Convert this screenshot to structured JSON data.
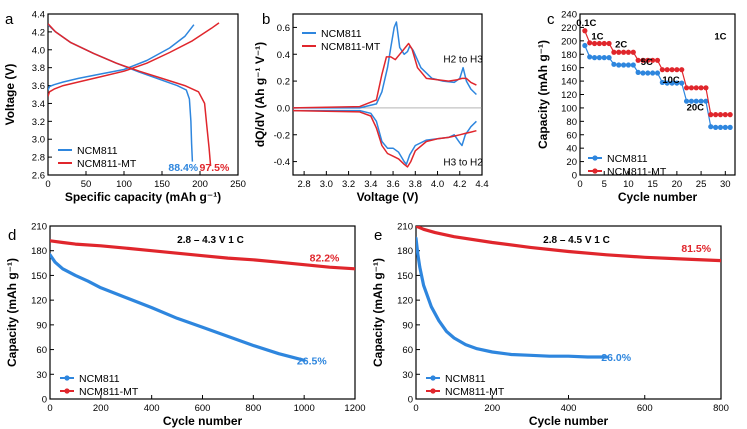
{
  "colors": {
    "ncm811": "#2e86de",
    "ncm811_mt": "#e0262c"
  },
  "chart_data": [
    {
      "id": "a",
      "panel_letter": "a",
      "type": "line",
      "xlabel": "Specific capacity (mAh g⁻¹)",
      "ylabel": "Voltage (V)",
      "xlim": [
        0,
        250
      ],
      "ylim": [
        2.6,
        4.4
      ],
      "xticks": [
        "0",
        "50",
        "100",
        "150",
        "200",
        "250"
      ],
      "yticks": [
        "2.6",
        "2.8",
        "3.0",
        "3.2",
        "3.4",
        "3.6",
        "3.8",
        "4.0",
        "4.2",
        "4.4"
      ],
      "legend": [
        "NCM811",
        "NCM811-MT"
      ],
      "series": [
        {
          "name": "NCM811",
          "color_key": "ncm811",
          "segments": [
            {
              "label": "charge",
              "x": [
                0,
                2,
                8,
                20,
                40,
                70,
                100,
                130,
                160,
                180,
                192
              ],
              "y": [
                3.55,
                3.59,
                3.61,
                3.64,
                3.68,
                3.73,
                3.78,
                3.88,
                4.02,
                4.15,
                4.28
              ]
            },
            {
              "label": "discharge",
              "x": [
                0,
                10,
                30,
                60,
                90,
                120,
                150,
                170,
                182,
                186,
                188,
                189,
                190
              ],
              "y": [
                4.28,
                4.2,
                4.08,
                3.96,
                3.85,
                3.75,
                3.66,
                3.6,
                3.55,
                3.45,
                3.2,
                2.95,
                2.75
              ]
            }
          ]
        },
        {
          "name": "NCM811-MT",
          "color_key": "ncm811_mt",
          "segments": [
            {
              "label": "charge",
              "x": [
                0,
                2,
                8,
                20,
                40,
                70,
                100,
                130,
                160,
                190,
                215,
                225
              ],
              "y": [
                3.48,
                3.53,
                3.56,
                3.6,
                3.64,
                3.7,
                3.76,
                3.85,
                3.97,
                4.1,
                4.24,
                4.3
              ]
            },
            {
              "label": "discharge",
              "x": [
                0,
                10,
                30,
                60,
                90,
                120,
                150,
                180,
                198,
                206,
                209,
                212,
                214
              ],
              "y": [
                4.29,
                4.2,
                4.08,
                3.96,
                3.85,
                3.76,
                3.68,
                3.6,
                3.53,
                3.4,
                3.15,
                2.9,
                2.7
              ]
            }
          ]
        }
      ],
      "annotations": [
        {
          "text": "88.4%",
          "x": 178,
          "y": 2.69,
          "color_key": "ncm811"
        },
        {
          "text": "97.5%",
          "x": 219,
          "y": 2.69,
          "color_key": "ncm811_mt"
        }
      ]
    },
    {
      "id": "b",
      "panel_letter": "b",
      "type": "line",
      "xlabel": "Voltage (V)",
      "ylabel": "dQ/dV (Ah g⁻¹ V⁻¹)",
      "xlim": [
        2.7,
        4.4
      ],
      "ylim": [
        -0.5,
        0.7
      ],
      "xticks": [
        "2.8",
        "3.0",
        "3.2",
        "3.4",
        "3.6",
        "3.8",
        "4.0",
        "4.2",
        "4.4"
      ],
      "yticks": [
        "-0.4",
        "-0.2",
        "0.0",
        "0.2",
        "0.4",
        "0.6"
      ],
      "legend": [
        "NCM811",
        "NCM811-MT"
      ],
      "series": [
        {
          "name": "NCM811",
          "color_key": "ncm811",
          "segments": [
            {
              "label": "charge",
              "x": [
                2.7,
                3.3,
                3.45,
                3.5,
                3.55,
                3.58,
                3.61,
                3.63,
                3.66,
                3.7,
                3.73,
                3.75,
                3.78,
                3.85,
                3.95,
                4.05,
                4.15,
                4.2,
                4.23,
                4.26,
                4.3,
                4.35
              ],
              "y": [
                0.0,
                0.0,
                0.03,
                0.12,
                0.3,
                0.45,
                0.6,
                0.64,
                0.45,
                0.4,
                0.42,
                0.46,
                0.43,
                0.3,
                0.22,
                0.2,
                0.19,
                0.22,
                0.3,
                0.2,
                0.14,
                0.1
              ]
            },
            {
              "label": "discharge",
              "x": [
                2.7,
                3.3,
                3.4,
                3.45,
                3.5,
                3.55,
                3.6,
                3.65,
                3.7,
                3.72,
                3.75,
                3.8,
                3.9,
                4.0,
                4.1,
                4.15,
                4.2,
                4.22,
                4.25,
                4.3,
                4.35
              ],
              "y": [
                -0.02,
                -0.02,
                -0.04,
                -0.1,
                -0.25,
                -0.3,
                -0.3,
                -0.33,
                -0.4,
                -0.42,
                -0.35,
                -0.28,
                -0.24,
                -0.23,
                -0.22,
                -0.2,
                -0.26,
                -0.28,
                -0.2,
                -0.14,
                -0.1
              ]
            }
          ]
        },
        {
          "name": "NCM811-MT",
          "color_key": "ncm811_mt",
          "segments": [
            {
              "label": "charge",
              "x": [
                2.7,
                3.3,
                3.45,
                3.5,
                3.54,
                3.58,
                3.62,
                3.66,
                3.7,
                3.74,
                3.77,
                3.82,
                3.9,
                4.0,
                4.1,
                4.18,
                4.22,
                4.26,
                4.3,
                4.35
              ],
              "y": [
                0.0,
                0.01,
                0.06,
                0.25,
                0.38,
                0.38,
                0.36,
                0.4,
                0.44,
                0.48,
                0.44,
                0.3,
                0.22,
                0.21,
                0.2,
                0.21,
                0.22,
                0.22,
                0.19,
                0.17
              ]
            },
            {
              "label": "discharge",
              "x": [
                2.7,
                3.3,
                3.4,
                3.45,
                3.5,
                3.55,
                3.6,
                3.65,
                3.7,
                3.73,
                3.76,
                3.8,
                3.9,
                4.0,
                4.1,
                4.15,
                4.2,
                4.25,
                4.3,
                4.35
              ],
              "y": [
                -0.02,
                -0.03,
                -0.06,
                -0.15,
                -0.28,
                -0.34,
                -0.36,
                -0.38,
                -0.42,
                -0.44,
                -0.4,
                -0.32,
                -0.25,
                -0.23,
                -0.22,
                -0.21,
                -0.2,
                -0.19,
                -0.18,
                -0.17
              ]
            }
          ]
        }
      ],
      "annotations": [
        {
          "text": "H2 to H3",
          "x": 4.23,
          "y": 0.37
        },
        {
          "text": "H3 to H2",
          "x": 4.23,
          "y": -0.4
        }
      ]
    },
    {
      "id": "c",
      "panel_letter": "c",
      "type": "scatter",
      "xlabel": "Cycle number",
      "ylabel": "Capacity (mAh g⁻¹)",
      "xlim": [
        0,
        32
      ],
      "ylim": [
        0,
        240
      ],
      "xticks": [
        "0",
        "5",
        "10",
        "15",
        "20",
        "25",
        "30"
      ],
      "yticks": [
        "0",
        "20",
        "40",
        "60",
        "80",
        "100",
        "120",
        "140",
        "160",
        "180",
        "200",
        "220",
        "240"
      ],
      "legend": [
        "NCM811",
        "NCM811-MT"
      ],
      "x": [
        1,
        2,
        3,
        4,
        5,
        6,
        7,
        8,
        9,
        10,
        11,
        12,
        13,
        14,
        15,
        16,
        17,
        18,
        19,
        20,
        21,
        22,
        23,
        24,
        25,
        26,
        27,
        28,
        29,
        30,
        31
      ],
      "series": [
        {
          "name": "NCM811",
          "color_key": "ncm811",
          "values": [
            193,
            176,
            175,
            175,
            175,
            175,
            165,
            164,
            164,
            164,
            164,
            153,
            152,
            152,
            152,
            152,
            138,
            137,
            137,
            137,
            137,
            110,
            110,
            110,
            110,
            110,
            72,
            71,
            71,
            71,
            71
          ]
        },
        {
          "name": "NCM811-MT",
          "color_key": "ncm811_mt",
          "values": [
            215,
            197,
            196,
            196,
            196,
            196,
            183,
            183,
            183,
            183,
            183,
            171,
            171,
            171,
            171,
            171,
            157,
            157,
            157,
            157,
            157,
            130,
            130,
            130,
            130,
            130,
            90,
            90,
            90,
            90,
            90
          ]
        }
      ],
      "rate_labels": [
        {
          "text": "0.1C",
          "x": 1.3,
          "y": 222
        },
        {
          "text": "1C",
          "x": 3.6,
          "y": 202
        },
        {
          "text": "2C",
          "x": 8.5,
          "y": 190
        },
        {
          "text": "5C",
          "x": 13.8,
          "y": 164
        },
        {
          "text": "10C",
          "x": 18.8,
          "y": 137
        },
        {
          "text": "20C",
          "x": 23.8,
          "y": 96
        },
        {
          "text": "1C",
          "x": 29.0,
          "y": 202
        }
      ]
    },
    {
      "id": "d",
      "panel_letter": "d",
      "type": "line",
      "condition": "2.8 – 4.3 V  1 C",
      "xlabel": "Cycle number",
      "ylabel": "Capacity (mAh g⁻¹)",
      "xlim": [
        0,
        1200
      ],
      "ylim": [
        0,
        210
      ],
      "xticks": [
        "0",
        "200",
        "400",
        "600",
        "800",
        "1000",
        "1200"
      ],
      "yticks": [
        "0",
        "30",
        "60",
        "90",
        "120",
        "150",
        "180",
        "210"
      ],
      "legend": [
        "NCM811",
        "NCM811-MT"
      ],
      "series": [
        {
          "name": "NCM811",
          "color_key": "ncm811",
          "x": [
            0,
            20,
            50,
            100,
            150,
            200,
            300,
            400,
            500,
            600,
            700,
            800,
            900,
            1000
          ],
          "y": [
            175,
            166,
            158,
            150,
            143,
            135,
            123,
            111,
            98,
            87,
            76,
            65,
            55,
            47
          ]
        },
        {
          "name": "NCM811-MT",
          "color_key": "ncm811_mt",
          "x": [
            0,
            50,
            100,
            200,
            300,
            400,
            500,
            600,
            700,
            800,
            900,
            1000,
            1100,
            1200
          ],
          "y": [
            192,
            190,
            188,
            186,
            183,
            180,
            177,
            174,
            171,
            169,
            166,
            163,
            160,
            158
          ]
        }
      ],
      "annotations": [
        {
          "text": "26.5%",
          "x": 1030,
          "y": 47,
          "color_key": "ncm811"
        },
        {
          "text": "82.2%",
          "x": 1080,
          "y": 172,
          "color_key": "ncm811_mt"
        }
      ]
    },
    {
      "id": "e",
      "panel_letter": "e",
      "type": "line",
      "condition": "2.8 – 4.5 V  1 C",
      "xlabel": "Cycle number",
      "ylabel": "Capacity (mAh g⁻¹)",
      "xlim": [
        0,
        800
      ],
      "ylim": [
        0,
        210
      ],
      "xticks": [
        "0",
        "200",
        "400",
        "600",
        "800"
      ],
      "yticks": [
        "0",
        "30",
        "60",
        "90",
        "120",
        "150",
        "180",
        "210"
      ],
      "legend": [
        "NCM811",
        "NCM811-MT"
      ],
      "series": [
        {
          "name": "NCM811",
          "color_key": "ncm811",
          "x": [
            0,
            5,
            10,
            20,
            40,
            60,
            80,
            100,
            130,
            160,
            200,
            250,
            300,
            350,
            400,
            450,
            500
          ],
          "y": [
            195,
            175,
            160,
            138,
            112,
            95,
            82,
            74,
            66,
            61,
            57,
            54,
            53,
            52,
            52,
            51,
            51
          ]
        },
        {
          "name": "NCM811-MT",
          "color_key": "ncm811_mt",
          "x": [
            0,
            20,
            50,
            100,
            200,
            300,
            400,
            500,
            600,
            700,
            800
          ],
          "y": [
            210,
            206,
            202,
            197,
            190,
            184,
            179,
            175,
            172,
            170,
            168
          ]
        }
      ],
      "annotations": [
        {
          "text": "26.0%",
          "x": 525,
          "y": 51,
          "color_key": "ncm811"
        },
        {
          "text": "81.5%",
          "x": 735,
          "y": 183,
          "color_key": "ncm811_mt"
        }
      ]
    }
  ]
}
